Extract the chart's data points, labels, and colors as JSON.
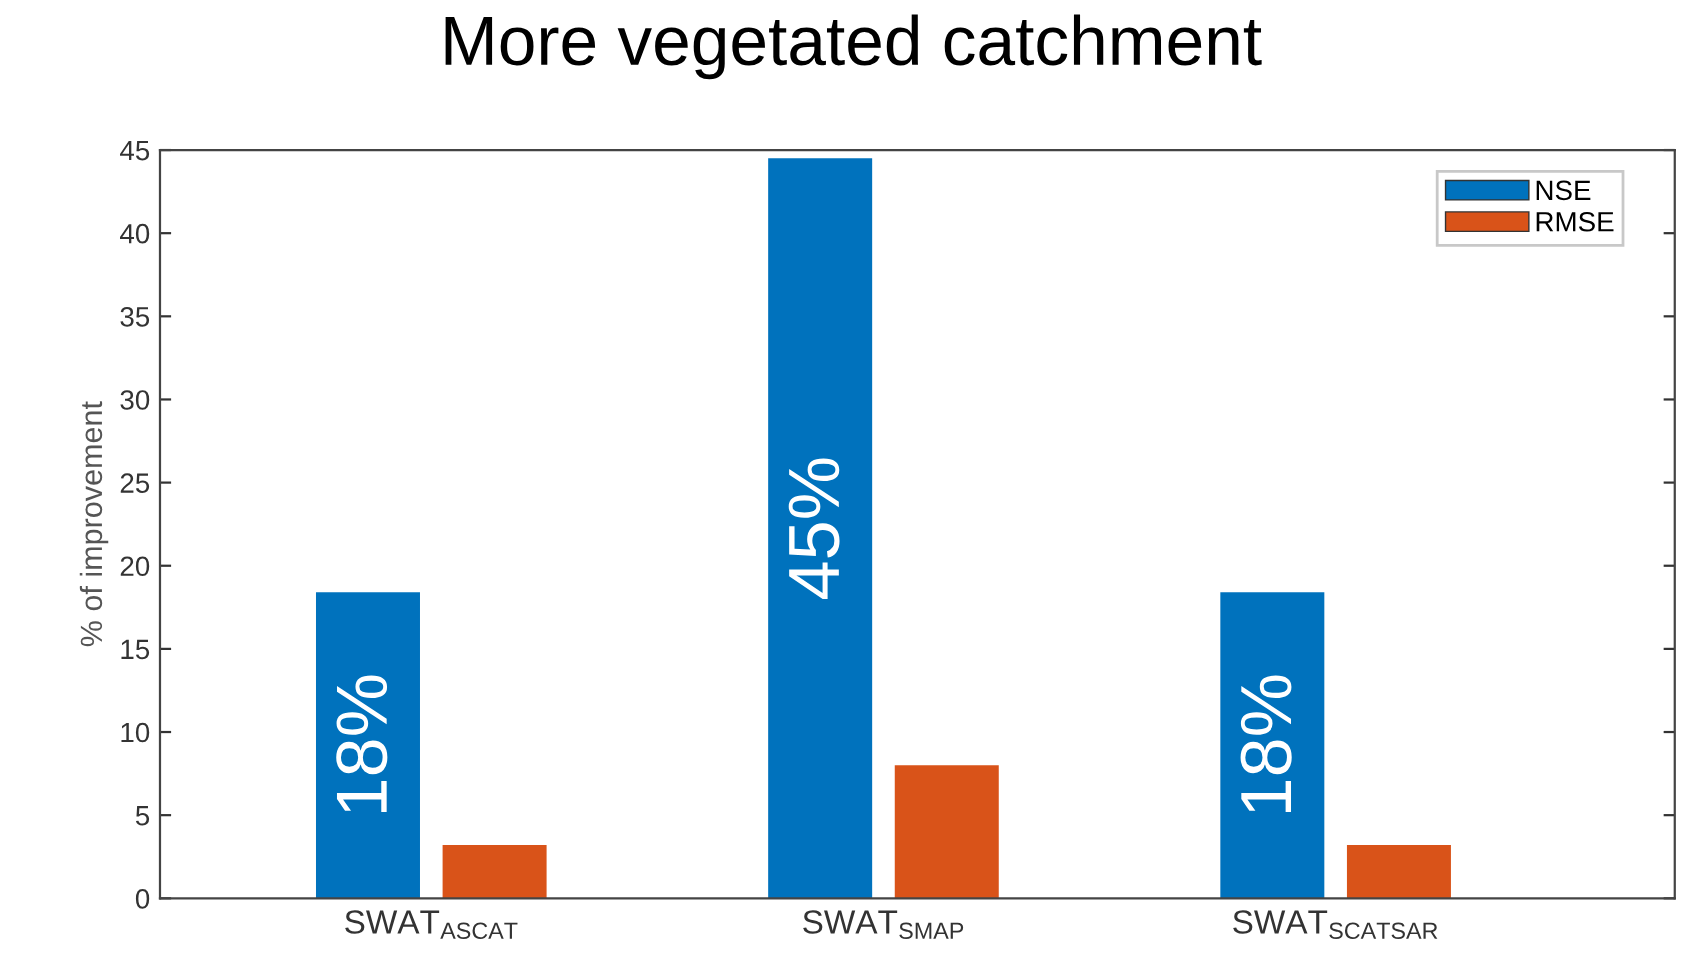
{
  "chart_data": {
    "type": "bar",
    "title": "More vegetated catchment",
    "ylabel": "% of improvement",
    "categories": [
      "SWAT$_{ASCAT}$",
      "SWAT$_{SMAP}$",
      "SWAT$_{SCATSAR}$"
    ],
    "series": [
      {
        "name": "NSE",
        "color": "#0072bd",
        "values": [
          18.4,
          44.5,
          18.4
        ],
        "value_labels": [
          "18%",
          "45%",
          "18%"
        ]
      },
      {
        "name": "RMSE",
        "color": "#d95319",
        "values": [
          3.2,
          8.0,
          3.2
        ]
      }
    ],
    "ylim": [
      0,
      45
    ],
    "yticks": [
      0,
      5,
      10,
      15,
      20,
      25,
      30,
      35,
      40,
      45
    ],
    "grid": false,
    "legend": "top right"
  }
}
